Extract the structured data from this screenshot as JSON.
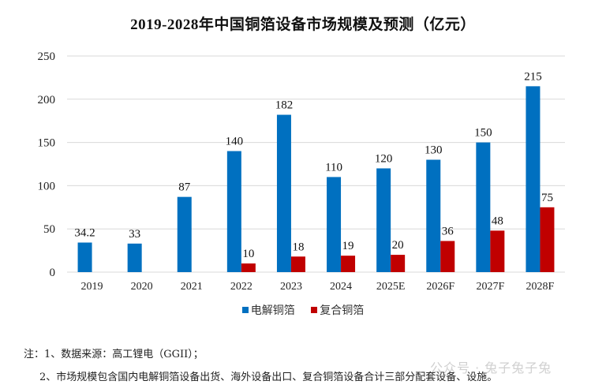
{
  "chart_data": {
    "type": "bar",
    "title": "2019-2028年中国铜箔设备市场规模及预测（亿元）",
    "xlabel": "",
    "ylabel": "",
    "ylim": [
      0,
      250
    ],
    "yticks": [
      0,
      50,
      100,
      150,
      200,
      250
    ],
    "grid": true,
    "legend_position": "bottom",
    "categories": [
      "2019",
      "2020",
      "2021",
      "2022",
      "2023",
      "2024",
      "2025E",
      "2026F",
      "2027F",
      "2028F"
    ],
    "series": [
      {
        "name": "电解铜箔",
        "color": "#0070C0",
        "values": [
          34.2,
          33,
          87,
          140,
          182,
          110,
          120,
          130,
          150,
          215
        ]
      },
      {
        "name": "复合铜箔",
        "color": "#C00000",
        "values": [
          null,
          null,
          null,
          10,
          18,
          19,
          20,
          36,
          48,
          75
        ]
      }
    ]
  },
  "notes": {
    "line1": "注：1、数据来源：高工锂电（GGII）；",
    "line2": "2、市场规模包含国内电解铜箔设备出货、海外设备出口、复合铜箔设备合计三部分配套设备、设施。"
  },
  "watermark": "公众号 · 兔子兔子兔"
}
